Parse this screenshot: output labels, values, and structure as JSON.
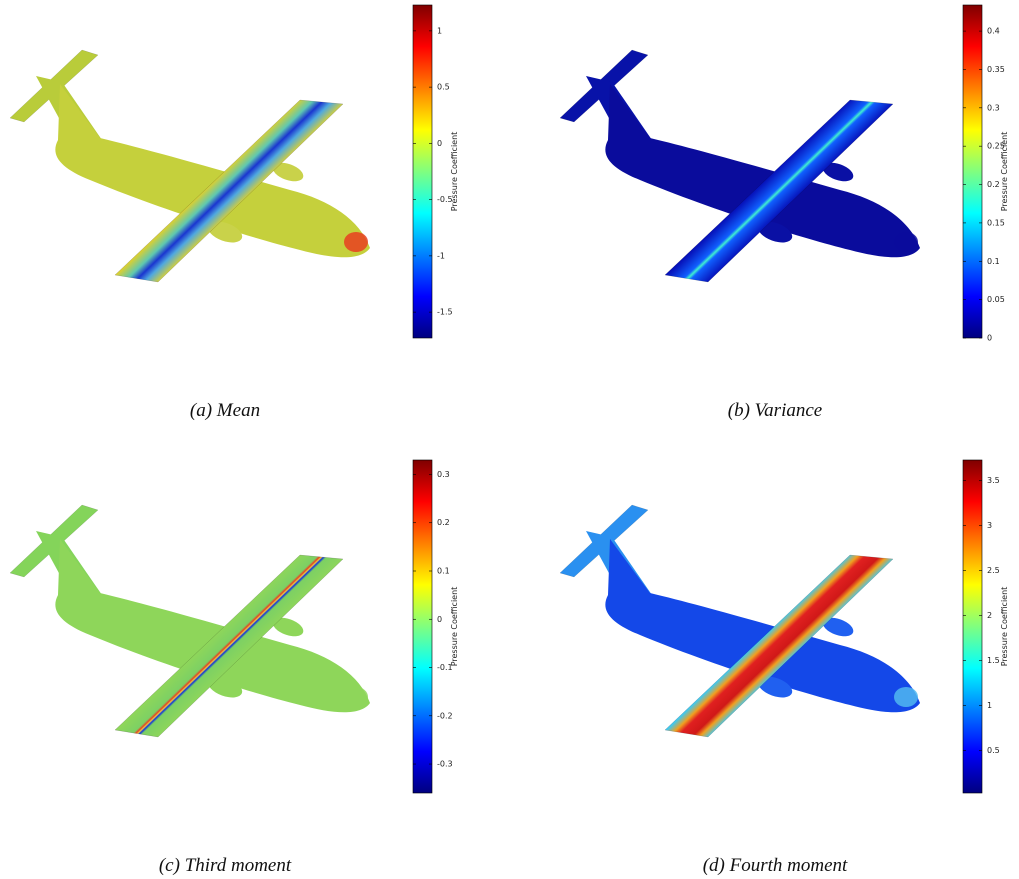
{
  "panels": [
    {
      "caption": "(a) Mean",
      "colorbar": {
        "label": "Pressure Coefficient",
        "range": [
          -1.73,
          1.23
        ],
        "ticks": [
          1,
          0.5,
          0,
          -0.5,
          -1,
          -1.5
        ]
      }
    },
    {
      "caption": "(b) Variance",
      "colorbar": {
        "label": "Pressure Coefficient",
        "range": [
          0,
          0.434
        ],
        "ticks": [
          0.4,
          0.35,
          0.3,
          0.25,
          0.2,
          0.15,
          0.1,
          0.05,
          0
        ]
      }
    },
    {
      "caption": "(c) Third moment",
      "colorbar": {
        "label": "Pressure Coefficient",
        "range": [
          -0.36,
          0.33
        ],
        "ticks": [
          0.3,
          0.2,
          0.1,
          0,
          -0.1,
          -0.2,
          -0.3
        ]
      }
    },
    {
      "caption": "(d) Fourth moment",
      "colorbar": {
        "label": "Pressure Coefficient",
        "range": [
          0.03,
          3.73
        ],
        "ticks": [
          3.5,
          3,
          2.5,
          2,
          1.5,
          1,
          0.5
        ]
      }
    }
  ]
}
